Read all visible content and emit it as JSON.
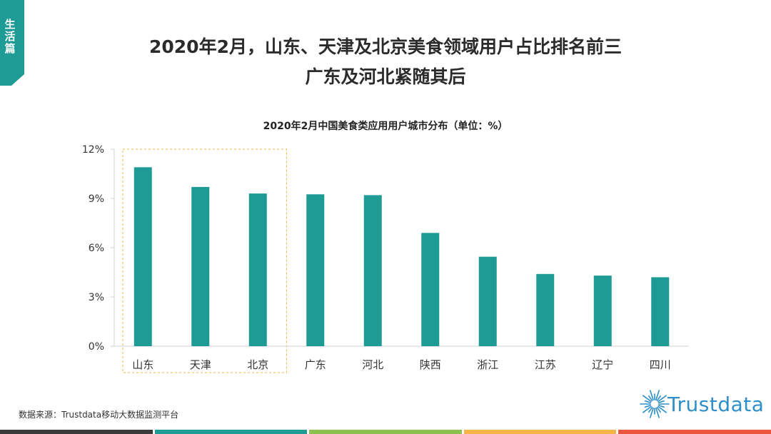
{
  "badge": {
    "text": "生活篇",
    "color": "#1f9b95"
  },
  "header": {
    "title_line1": "2020年2月，山东、天津及北京美食领域用户占比排名前三",
    "title_line2": "广东及河北紧随其后"
  },
  "chart_data": {
    "type": "bar",
    "title": "2020年2月中国美食类应用用户城市分布（单位：%）",
    "categories": [
      "山东",
      "天津",
      "北京",
      "广东",
      "河北",
      "陕西",
      "浙江",
      "江苏",
      "辽宁",
      "四川"
    ],
    "values": [
      10.9,
      9.7,
      9.3,
      9.25,
      9.2,
      6.9,
      5.45,
      4.4,
      4.3,
      4.2
    ],
    "ylim": [
      0,
      12
    ],
    "yticks": [
      "0%",
      "3%",
      "6%",
      "9%",
      "12%"
    ],
    "ytick_values": [
      0,
      3,
      6,
      9,
      12
    ],
    "bar_color": "#1f9b95",
    "highlight_categories": [
      "山东",
      "天津",
      "北京"
    ],
    "highlight_color": "#f5b54a",
    "grid": false
  },
  "footer": {
    "source": "数据来源：Trustdata移动大数据监测平台",
    "logo_text": "Trustdata",
    "logo_color": "#2f8fc9"
  },
  "bottom_bar_colors": [
    "#3a3a3a",
    "#1f9b95",
    "#8cc152",
    "#f5b54a",
    "#e9573f"
  ]
}
